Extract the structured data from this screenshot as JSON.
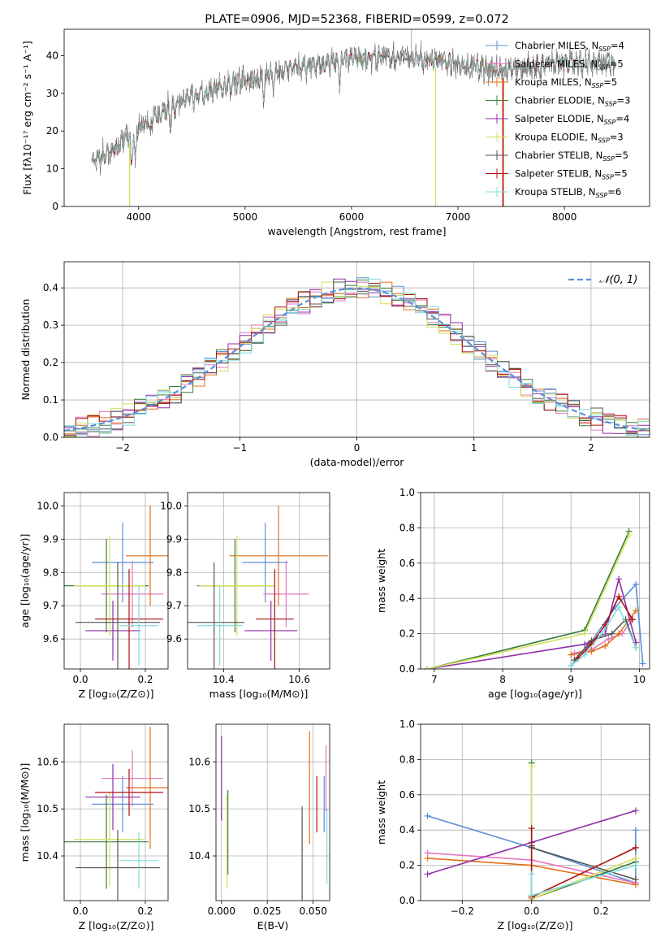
{
  "colors": [
    "#5b8fd6",
    "#e377c2",
    "#e0701a",
    "#3a7d3a",
    "#9030a8",
    "#d4e05a",
    "#555555",
    "#b01010",
    "#80dcdc"
  ],
  "series_names": [
    {
      "base": "Chabrier MILES, N",
      "n": "4"
    },
    {
      "base": "Salpeter MILES, N",
      "n": "5"
    },
    {
      "base": "Kroupa MILES, N",
      "n": "5"
    },
    {
      "base": "Chabrier ELODIE, N",
      "n": "3"
    },
    {
      "base": "Salpeter ELODIE, N",
      "n": "4"
    },
    {
      "base": "Kroupa ELODIE, N",
      "n": "3"
    },
    {
      "base": "Chabrier STELIB, N",
      "n": "5"
    },
    {
      "base": "Salpeter STELIB, N",
      "n": "5"
    },
    {
      "base": "Kroupa STELIB, N",
      "n": "6"
    }
  ],
  "chart_data": [
    {
      "id": "spectrum",
      "type": "line",
      "title": "PLATE=0906, MJD=52368, FIBERID=0599, z=0.072",
      "xlabel": "wavelength [Angstrom, rest frame]",
      "ylabel": "Flux [fλ10⁻¹⁷ erg cm⁻² s⁻¹ A⁻¹]",
      "xlim": [
        3300,
        8800
      ],
      "ylim": [
        0,
        47
      ],
      "xticks": [
        4000,
        5000,
        6000,
        7000,
        8000
      ],
      "yticks": [
        0,
        10,
        20,
        30,
        40
      ],
      "legend": "right",
      "grid": false,
      "continuum": [
        [
          3560,
          12
        ],
        [
          3700,
          14
        ],
        [
          3800,
          16
        ],
        [
          3950,
          20
        ],
        [
          4100,
          23
        ],
        [
          4300,
          26
        ],
        [
          4500,
          29
        ],
        [
          4700,
          31
        ],
        [
          4900,
          33
        ],
        [
          5100,
          34
        ],
        [
          5300,
          35.5
        ],
        [
          5500,
          37
        ],
        [
          5800,
          38
        ],
        [
          6000,
          39
        ],
        [
          6300,
          39.5
        ],
        [
          6500,
          40
        ],
        [
          6800,
          39
        ],
        [
          7100,
          37
        ],
        [
          7400,
          36
        ],
        [
          7700,
          37
        ],
        [
          8000,
          38
        ],
        [
          8300,
          38
        ],
        [
          8480,
          37
        ]
      ]
    },
    {
      "id": "residuals",
      "type": "histogram",
      "xlabel": "(data-model)/error",
      "ylabel": "Normed distribution",
      "xlim": [
        -2.5,
        2.5
      ],
      "ylim": [
        0,
        0.47
      ],
      "xticks": [
        -2,
        -1,
        0,
        1,
        2
      ],
      "yticks": [
        0,
        0.1,
        0.2,
        0.3,
        0.4
      ],
      "legend": "top-right",
      "legend_label": "𝒩(0, 1)",
      "grid": true,
      "bins": 50
    },
    {
      "id": "z-age",
      "type": "errorbar",
      "xlabel": "Z [log₁₀(Z/Z⊙)]",
      "ylabel": "age  [log₁₀(age/yr)]",
      "xlim": [
        -0.05,
        0.27
      ],
      "ylim": [
        9.51,
        10.04
      ],
      "xticks": [
        0.0,
        0.2
      ],
      "yticks": [
        9.6,
        9.7,
        9.8,
        9.9,
        10.0
      ],
      "grid": true,
      "points": [
        {
          "x": 0.13,
          "xerr": 0.095,
          "y": 9.83,
          "yerr": 0.12
        },
        {
          "x": 0.16,
          "xerr": 0.095,
          "y": 9.735,
          "yerr": 0.1
        },
        {
          "x": 0.215,
          "xerr": 0.075,
          "y": 9.85,
          "yerr": 0.15
        },
        {
          "x": 0.08,
          "xerr": 0.13,
          "y": 9.76,
          "yerr": 0.14
        },
        {
          "x": 0.1,
          "xerr": 0.085,
          "y": 9.625,
          "yerr": 0.09
        },
        {
          "x": 0.09,
          "xerr": 0.11,
          "y": 9.76,
          "yerr": 0.15
        },
        {
          "x": 0.115,
          "xerr": 0.13,
          "y": 9.65,
          "yerr": 0.18
        },
        {
          "x": 0.15,
          "xerr": 0.105,
          "y": 9.66,
          "yerr": 0.15
        },
        {
          "x": 0.18,
          "xerr": 0.06,
          "y": 9.64,
          "yerr": 0.12
        }
      ]
    },
    {
      "id": "mass-age",
      "type": "errorbar",
      "xlabel": "mass [log₁₀(M/M⊙)]",
      "ylabel": "",
      "xlim": [
        10.305,
        10.68
      ],
      "ylim": [
        9.51,
        10.04
      ],
      "xticks": [
        10.4,
        10.6
      ],
      "yticks": [
        9.6,
        9.7,
        9.8,
        9.9,
        10.0
      ],
      "grid": true,
      "points": [
        {
          "x": 10.51,
          "xerr": 0.06,
          "y": 9.83,
          "yerr": 0.12
        },
        {
          "x": 10.565,
          "xerr": 0.06,
          "y": 9.735,
          "yerr": 0.1
        },
        {
          "x": 10.545,
          "xerr": 0.13,
          "y": 9.85,
          "yerr": 0.15
        },
        {
          "x": 10.43,
          "xerr": 0.1,
          "y": 9.76,
          "yerr": 0.14
        },
        {
          "x": 10.525,
          "xerr": 0.07,
          "y": 9.625,
          "yerr": 0.09
        },
        {
          "x": 10.435,
          "xerr": 0.1,
          "y": 9.76,
          "yerr": 0.15
        },
        {
          "x": 10.375,
          "xerr": 0.08,
          "y": 9.65,
          "yerr": 0.18
        },
        {
          "x": 10.535,
          "xerr": 0.05,
          "y": 9.66,
          "yerr": 0.15
        },
        {
          "x": 10.39,
          "xerr": 0.06,
          "y": 9.64,
          "yerr": 0.12
        }
      ]
    },
    {
      "id": "age-weight",
      "type": "line",
      "xlabel": "age  [log₁₀(age/yr)]",
      "ylabel": "mass weight",
      "xlim": [
        6.8,
        10.15
      ],
      "ylim": [
        0,
        1.0
      ],
      "xticks": [
        7,
        8,
        9,
        10
      ],
      "yticks": [
        0.0,
        0.2,
        0.4,
        0.6,
        0.8,
        1.0
      ],
      "grid": true,
      "series": [
        {
          "x": [
            9.0,
            9.2,
            9.65,
            9.95,
            10.05
          ],
          "y": [
            0.02,
            0.1,
            0.35,
            0.48,
            0.03
          ]
        },
        {
          "x": [
            9.05,
            9.3,
            9.55,
            9.75,
            9.9
          ],
          "y": [
            0.09,
            0.11,
            0.17,
            0.2,
            0.28
          ]
        },
        {
          "x": [
            9.0,
            9.3,
            9.5,
            9.7,
            9.95
          ],
          "y": [
            0.08,
            0.1,
            0.13,
            0.2,
            0.33
          ]
        },
        {
          "x": [
            6.9,
            9.2,
            9.85
          ],
          "y": [
            0.0,
            0.22,
            0.78
          ]
        },
        {
          "x": [
            6.9,
            9.2,
            9.5,
            9.7,
            9.95
          ],
          "y": [
            0.0,
            0.14,
            0.2,
            0.51,
            0.15
          ]
        },
        {
          "x": [
            6.9,
            9.2,
            9.85
          ],
          "y": [
            0.0,
            0.2,
            0.76
          ]
        },
        {
          "x": [
            9.05,
            9.3,
            9.6,
            9.8,
            9.95
          ],
          "y": [
            0.05,
            0.16,
            0.2,
            0.28,
            0.12
          ]
        },
        {
          "x": [
            9.1,
            9.3,
            9.5,
            9.7,
            9.9
          ],
          "y": [
            0.06,
            0.14,
            0.25,
            0.41,
            0.28
          ]
        },
        {
          "x": [
            9.0,
            9.2,
            9.45,
            9.7,
            9.95
          ],
          "y": [
            0.02,
            0.08,
            0.2,
            0.35,
            0.12
          ]
        }
      ]
    },
    {
      "id": "z-mass",
      "type": "errorbar",
      "xlabel": "Z [log₁₀(Z/Z⊙)]",
      "ylabel": "mass [log₁₀(M/M⊙)]",
      "xlim": [
        -0.05,
        0.27
      ],
      "ylim": [
        10.305,
        10.68
      ],
      "xticks": [
        0.0,
        0.2
      ],
      "yticks": [
        10.4,
        10.5,
        10.6
      ],
      "grid": true,
      "points": [
        {
          "x": 0.13,
          "xerr": 0.095,
          "y": 10.51,
          "yerr": 0.06
        },
        {
          "x": 0.16,
          "xerr": 0.095,
          "y": 10.565,
          "yerr": 0.06
        },
        {
          "x": 0.215,
          "xerr": 0.075,
          "y": 10.545,
          "yerr": 0.13
        },
        {
          "x": 0.08,
          "xerr": 0.13,
          "y": 10.43,
          "yerr": 0.1
        },
        {
          "x": 0.1,
          "xerr": 0.085,
          "y": 10.525,
          "yerr": 0.07
        },
        {
          "x": 0.09,
          "xerr": 0.11,
          "y": 10.435,
          "yerr": 0.1
        },
        {
          "x": 0.115,
          "xerr": 0.13,
          "y": 10.375,
          "yerr": 0.08
        },
        {
          "x": 0.15,
          "xerr": 0.105,
          "y": 10.535,
          "yerr": 0.05
        },
        {
          "x": 0.18,
          "xerr": 0.06,
          "y": 10.39,
          "yerr": 0.06
        }
      ]
    },
    {
      "id": "ebv-mass",
      "type": "errorbar",
      "xlabel": "E(B-V)",
      "ylabel": "",
      "xlim": [
        -0.003,
        0.059
      ],
      "ylim": [
        10.305,
        10.68
      ],
      "xticks": [
        0.0,
        0.025,
        0.05
      ],
      "yticks": [
        10.4,
        10.5,
        10.6
      ],
      "grid": true,
      "points": [
        {
          "x": 0.056,
          "xerr": 0,
          "y": 10.51,
          "yerr": 0.06
        },
        {
          "x": 0.057,
          "xerr": 0,
          "y": 10.565,
          "yerr": 0.07
        },
        {
          "x": 0.048,
          "xerr": 0,
          "y": 10.545,
          "yerr": 0.12
        },
        {
          "x": 0.0035,
          "xerr": 0,
          "y": 10.45,
          "yerr": 0.09
        },
        {
          "x": 0.0,
          "xerr": 0,
          "y": 10.565,
          "yerr": 0.09
        },
        {
          "x": 0.003,
          "xerr": 0,
          "y": 10.43,
          "yerr": 0.1
        },
        {
          "x": 0.044,
          "xerr": 0,
          "y": 10.375,
          "yerr": 0.13
        },
        {
          "x": 0.052,
          "xerr": 0,
          "y": 10.51,
          "yerr": 0.06
        },
        {
          "x": 0.0575,
          "xerr": 0,
          "y": 10.42,
          "yerr": 0.08
        }
      ]
    },
    {
      "id": "z-weight",
      "type": "line",
      "xlabel": "Z [log₁₀(Z/Z⊙)]",
      "ylabel": "mass weight",
      "xlim": [
        -0.32,
        0.34
      ],
      "ylim": [
        0,
        1.0
      ],
      "xticks": [
        -0.2,
        0.0,
        0.2
      ],
      "yticks": [
        0.0,
        0.2,
        0.4,
        0.6,
        0.8,
        1.0
      ],
      "grid": true,
      "series": [
        {
          "x": [
            -0.3,
            0.0,
            0.3,
            0.3
          ],
          "y": [
            0.48,
            0.3,
            0.1,
            0.4
          ]
        },
        {
          "x": [
            -0.3,
            0.0,
            0.3
          ],
          "y": [
            0.27,
            0.23,
            0.1
          ]
        },
        {
          "x": [
            -0.3,
            0.0,
            0.3
          ],
          "y": [
            0.24,
            0.2,
            0.09
          ]
        },
        {
          "x": [
            0.0,
            0.0,
            0.3
          ],
          "y": [
            0.78,
            0.01,
            0.22
          ]
        },
        {
          "x": [
            -0.3,
            0.0,
            0.3
          ],
          "y": [
            0.15,
            0.33,
            0.51
          ]
        },
        {
          "x": [
            0.0,
            0.0,
            0.3
          ],
          "y": [
            0.76,
            0.01,
            0.24
          ]
        },
        {
          "x": [
            0.0,
            0.0,
            0.3
          ],
          "y": [
            0.31,
            0.3,
            0.12
          ]
        },
        {
          "x": [
            0.0,
            0.0,
            0.3
          ],
          "y": [
            0.41,
            0.02,
            0.3
          ]
        },
        {
          "x": [
            0.0,
            0.0,
            0.3
          ],
          "y": [
            0.15,
            0.03,
            0.2
          ]
        }
      ]
    }
  ]
}
